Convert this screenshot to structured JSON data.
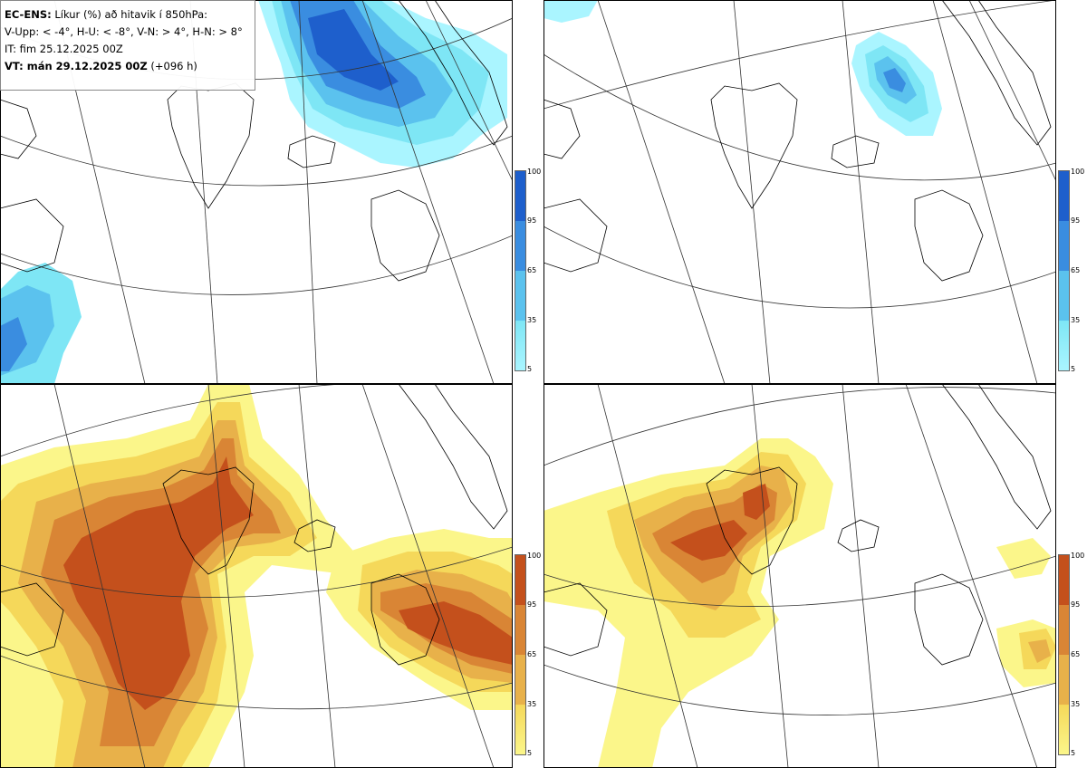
{
  "header": {
    "model": "EC-ENS:",
    "title": "Líkur (%) að hitavik í 850hPa:",
    "thresholds": "V-Upp: < -4°, H-U: < -8°, V-N: > 4°, H-N: > 8°",
    "init_time": "IT: fim 25.12.2025 00Z",
    "valid_label": "VT: mán 29.12.2025 00Z",
    "valid_offset": "(+096 h)"
  },
  "panels": [
    {
      "id": "V-Upp",
      "scheme": "cold",
      "color_scale": "blue"
    },
    {
      "id": "H-U",
      "scheme": "cold",
      "color_scale": "blue"
    },
    {
      "id": "V-N",
      "scheme": "warm",
      "color_scale": "orange"
    },
    {
      "id": "H-N",
      "scheme": "warm",
      "color_scale": "orange"
    }
  ],
  "colorbar": {
    "ticks": [
      "100",
      "95",
      "65",
      "35",
      "5"
    ],
    "cold_colors": [
      "#1e5fcc",
      "#3a8de0",
      "#5bc2ee",
      "#7ee6f5",
      "#aaf5ff"
    ],
    "warm_colors": [
      "#c4501c",
      "#d98535",
      "#e8b14a",
      "#f5d85a",
      "#fbf68a"
    ]
  },
  "colors": {
    "coast": "#000000",
    "grid": "#333333",
    "background": "#ffffff"
  }
}
